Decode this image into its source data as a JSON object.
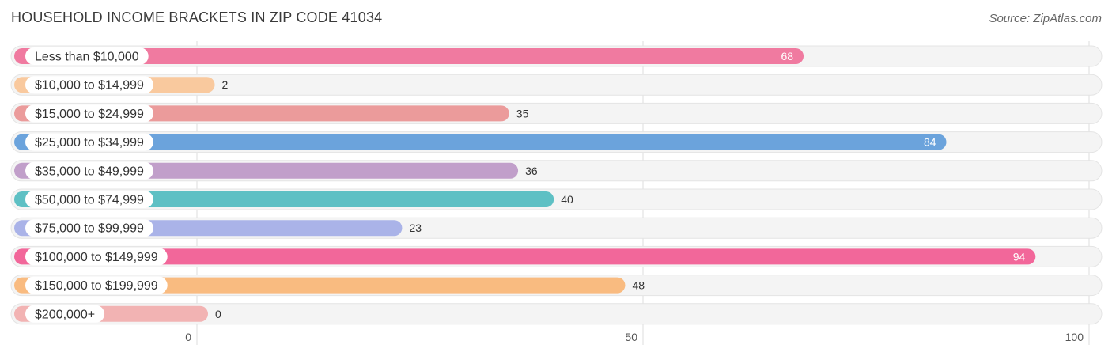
{
  "header": {
    "title": "HOUSEHOLD INCOME BRACKETS IN ZIP CODE 41034",
    "source": "Source: ZipAtlas.com"
  },
  "chart_data": {
    "type": "bar",
    "orientation": "horizontal",
    "title": "HOUSEHOLD INCOME BRACKETS IN ZIP CODE 41034",
    "categories": [
      "Less than $10,000",
      "$10,000 to $14,999",
      "$15,000 to $24,999",
      "$25,000 to $34,999",
      "$35,000 to $49,999",
      "$50,000 to $74,999",
      "$75,000 to $99,999",
      "$100,000 to $149,999",
      "$150,000 to $199,999",
      "$200,000+"
    ],
    "values": [
      68,
      2,
      35,
      84,
      36,
      40,
      23,
      94,
      48,
      0
    ],
    "value_labels": [
      "68",
      "2",
      "35",
      "84",
      "36",
      "40",
      "23",
      "94",
      "48",
      "0"
    ],
    "colors": [
      "#f07aa0",
      "#f9c99e",
      "#eb9b9b",
      "#6ba3dc",
      "#c19fca",
      "#5ec0c4",
      "#aab3e8",
      "#f2679a",
      "#f9bb80",
      "#f2b3b3"
    ],
    "xlim": [
      0,
      100
    ],
    "ticks": [
      0,
      50,
      100
    ],
    "tick_labels": [
      "0",
      "50",
      "100"
    ],
    "grid": true
  }
}
